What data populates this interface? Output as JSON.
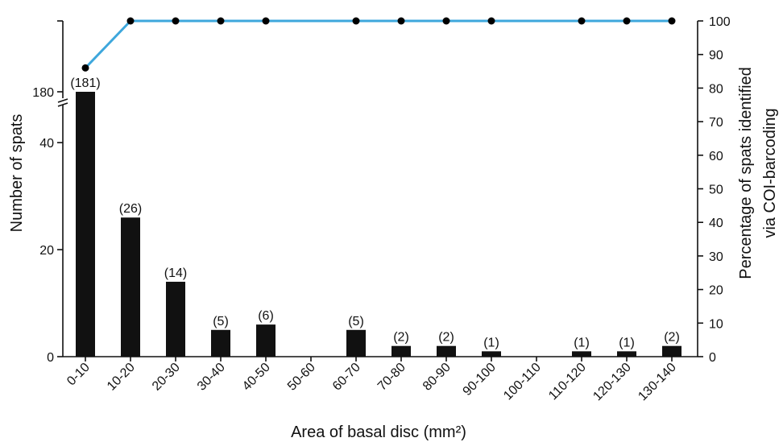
{
  "chart_data": {
    "type": "bar",
    "xlabel": "Area of basal disc (mm²)",
    "ylabel": "Number of spats",
    "y2label": [
      "Percentage of spats identified",
      "via COI-barcoding"
    ],
    "categories": [
      "0-10",
      "10-20",
      "20-30",
      "30-40",
      "40-50",
      "50-60",
      "60-70",
      "70-80",
      "80-90",
      "90-100",
      "100-110",
      "110-120",
      "120-130",
      "130-140"
    ],
    "series": [
      {
        "type": "bar",
        "axis": "left",
        "values": [
          181,
          26,
          14,
          5,
          6,
          0,
          5,
          2,
          2,
          1,
          0,
          1,
          1,
          2
        ],
        "labels": [
          "(181)",
          "(26)",
          "(14)",
          "(5)",
          "(6)",
          "",
          "(5)",
          "(2)",
          "(2)",
          "(1)",
          "",
          "(1)",
          "(1)",
          "(2)"
        ]
      },
      {
        "type": "line",
        "axis": "right",
        "points": [
          {
            "category": "0-10",
            "value": 86
          },
          {
            "category": "10-20",
            "value": 100
          },
          {
            "category": "20-30",
            "value": 100
          },
          {
            "category": "30-40",
            "value": 100
          },
          {
            "category": "40-50",
            "value": 100
          },
          {
            "category": "60-70",
            "value": 100
          },
          {
            "category": "70-80",
            "value": 100
          },
          {
            "category": "80-90",
            "value": 100
          },
          {
            "category": "90-100",
            "value": 100
          },
          {
            "category": "110-120",
            "value": 100
          },
          {
            "category": "120-130",
            "value": 100
          },
          {
            "category": "130-140",
            "value": 100
          }
        ]
      }
    ],
    "y_axis_left": {
      "broken": true,
      "lower_ticks": [
        0,
        20,
        40
      ],
      "upper_ticks": [
        180
      ],
      "lower_range": [
        0,
        48
      ]
    },
    "y_axis_right": {
      "range": [
        0,
        100
      ],
      "ticks": [
        0,
        10,
        20,
        30,
        40,
        50,
        60,
        70,
        80,
        90,
        100
      ]
    },
    "colors": {
      "bar": "#111111",
      "line": "#3ea7dc",
      "marker": "#000000"
    },
    "grid": false,
    "legend": "none"
  }
}
